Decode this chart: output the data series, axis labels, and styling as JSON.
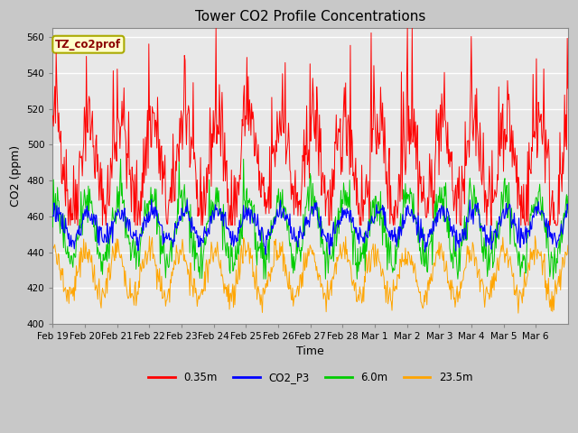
{
  "title": "Tower CO2 Profile Concentrations",
  "xlabel": "Time",
  "ylabel": "CO2 (ppm)",
  "ylim": [
    400,
    565
  ],
  "yticks": [
    400,
    420,
    440,
    460,
    480,
    500,
    520,
    540,
    560
  ],
  "annotation_text": "TZ_co2prof",
  "annotation_color": "#8B0000",
  "annotation_bg": "#FFFFCC",
  "annotation_border": "#AAAA00",
  "fig_bg_color": "#C8C8C8",
  "plot_bg": "#E8E8E8",
  "grid_color": "#FFFFFF",
  "series_colors": {
    "0.35m": "#FF0000",
    "CO2_P3": "#0000FF",
    "6.0m": "#00CC00",
    "23.5m": "#FFA500"
  },
  "x_tick_labels": [
    "Feb 19",
    "Feb 20",
    "Feb 21",
    "Feb 22",
    "Feb 23",
    "Feb 24",
    "Feb 25",
    "Feb 26",
    "Feb 27",
    "Feb 28",
    "Mar 1",
    "Mar 2",
    "Mar 3",
    "Mar 4",
    "Mar 5",
    "Mar 6"
  ],
  "n_days": 16,
  "seed": 42,
  "figsize": [
    6.4,
    4.8
  ],
  "dpi": 100
}
